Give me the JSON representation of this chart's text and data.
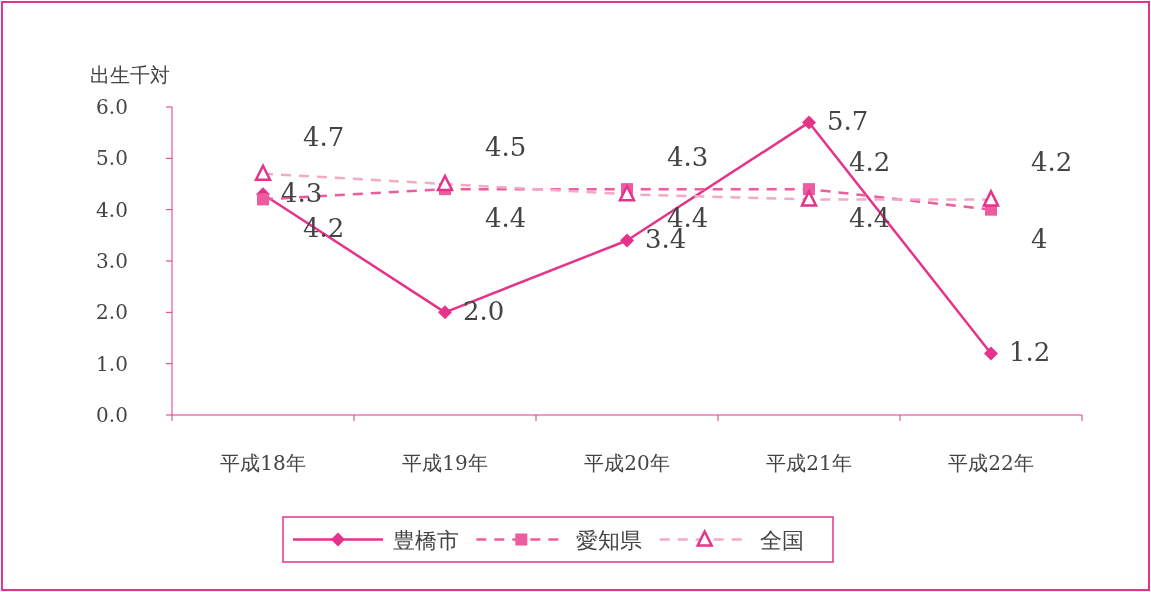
{
  "chart_data": {
    "type": "line",
    "ylabel": "出生千対",
    "categories": [
      "平成18年",
      "平成19年",
      "平成20年",
      "平成21年",
      "平成22年"
    ],
    "ylim": [
      0,
      6
    ],
    "yticks": [
      {
        "value": 0,
        "label": "0.0"
      },
      {
        "value": 1,
        "label": "1.0"
      },
      {
        "value": 2,
        "label": "2.0"
      },
      {
        "value": 3,
        "label": "3.0"
      },
      {
        "value": 4,
        "label": "4.0"
      },
      {
        "value": 5,
        "label": "5.0"
      },
      {
        "value": 6,
        "label": "6.0"
      }
    ],
    "legend": "bottom",
    "grid": false,
    "series": [
      {
        "name": "豊橋市",
        "color": "#e6338a",
        "marker": "diamond",
        "line_style": "solid",
        "values": [
          4.3,
          2.0,
          3.4,
          5.7,
          1.2
        ],
        "value_labels": [
          "4.3",
          "2.0",
          "3.4",
          "5.7",
          "1.2"
        ]
      },
      {
        "name": "愛知県",
        "color": "#ec5c9e",
        "marker": "square",
        "line_style": "dashed",
        "values": [
          4.2,
          4.4,
          4.4,
          4.4,
          4
        ],
        "value_labels": [
          "4.2",
          "4.4",
          "4.4",
          "4.4",
          "4"
        ]
      },
      {
        "name": "全国",
        "color": "#f3a9c9",
        "marker": "triangle",
        "line_style": "dashed",
        "values": [
          4.7,
          4.5,
          4.3,
          4.2,
          4.2
        ],
        "value_labels": [
          "4.7",
          "4.5",
          "4.3",
          "4.2",
          "4.2"
        ]
      }
    ]
  }
}
